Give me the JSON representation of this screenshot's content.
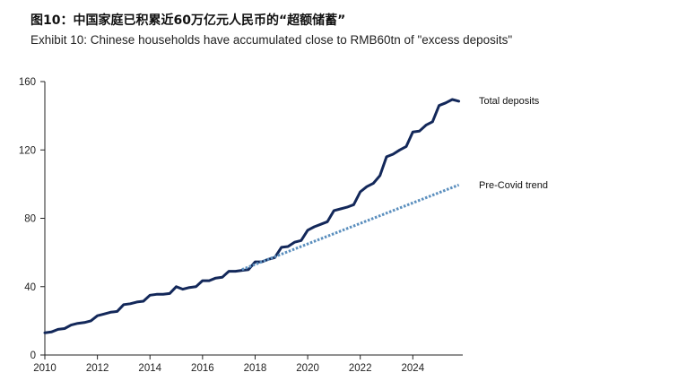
{
  "title_cn": "图10：中国家庭已积累近60万亿元人民币的“超额储蓄”",
  "title_en": "Exhibit 10:  Chinese households have accumulated close to RMB60tn of \"excess deposits\"",
  "colors": {
    "total_deposits": "#13285a",
    "pre_covid": "#5b8fbe",
    "axis": "#222222",
    "gridline": "#d9d9d9"
  },
  "chart_data": {
    "type": "line",
    "title": "Chinese households have accumulated close to RMB60tn of \"excess deposits\"",
    "xlabel": "",
    "ylabel": "",
    "xlim": [
      2010,
      2025.9
    ],
    "ylim": [
      0,
      160
    ],
    "xticks": [
      2010,
      2012,
      2014,
      2016,
      2018,
      2020,
      2022,
      2024
    ],
    "yticks": [
      0,
      40,
      80,
      120,
      160
    ],
    "grid": "horizontal",
    "series": [
      {
        "name": "Total deposits",
        "style": "solid",
        "points": [
          [
            2010.0,
            13
          ],
          [
            2010.25,
            13.5
          ],
          [
            2010.5,
            15
          ],
          [
            2010.75,
            15.5
          ],
          [
            2011.0,
            17.5
          ],
          [
            2011.25,
            18.5
          ],
          [
            2011.5,
            19
          ],
          [
            2011.75,
            20
          ],
          [
            2012.0,
            23
          ],
          [
            2012.25,
            24
          ],
          [
            2012.5,
            25
          ],
          [
            2012.75,
            25.5
          ],
          [
            2013.0,
            29.5
          ],
          [
            2013.25,
            30
          ],
          [
            2013.5,
            31
          ],
          [
            2013.75,
            31.5
          ],
          [
            2014.0,
            35
          ],
          [
            2014.25,
            35.5
          ],
          [
            2014.5,
            35.5
          ],
          [
            2014.75,
            36
          ],
          [
            2015.0,
            40
          ],
          [
            2015.25,
            38.5
          ],
          [
            2015.5,
            39.5
          ],
          [
            2015.75,
            40
          ],
          [
            2016.0,
            43.5
          ],
          [
            2016.25,
            43.5
          ],
          [
            2016.5,
            45
          ],
          [
            2016.75,
            45.5
          ],
          [
            2017.0,
            49
          ],
          [
            2017.25,
            49
          ],
          [
            2017.5,
            49.5
          ],
          [
            2017.75,
            50
          ],
          [
            2018.0,
            54.5
          ],
          [
            2018.25,
            54.5
          ],
          [
            2018.5,
            56
          ],
          [
            2018.75,
            57
          ],
          [
            2019.0,
            63
          ],
          [
            2019.25,
            63.5
          ],
          [
            2019.5,
            66
          ],
          [
            2019.75,
            67
          ],
          [
            2020.0,
            73
          ],
          [
            2020.25,
            75
          ],
          [
            2020.5,
            76.5
          ],
          [
            2020.75,
            78
          ],
          [
            2021.0,
            84.5
          ],
          [
            2021.25,
            85.5
          ],
          [
            2021.5,
            86.5
          ],
          [
            2021.75,
            88
          ],
          [
            2022.0,
            95.5
          ],
          [
            2022.25,
            98.5
          ],
          [
            2022.5,
            100.5
          ],
          [
            2022.75,
            105
          ],
          [
            2023.0,
            116
          ],
          [
            2023.25,
            117.5
          ],
          [
            2023.5,
            120
          ],
          [
            2023.75,
            122
          ],
          [
            2024.0,
            130.5
          ],
          [
            2024.25,
            131
          ],
          [
            2024.5,
            134.5
          ],
          [
            2024.75,
            136.5
          ],
          [
            2025.0,
            146
          ],
          [
            2025.25,
            147.5
          ],
          [
            2025.5,
            149.5
          ],
          [
            2025.75,
            148.5
          ]
        ]
      },
      {
        "name": "Pre-Covid trend",
        "style": "dotted",
        "points": [
          [
            2017.5,
            50
          ],
          [
            2025.75,
            99.5
          ]
        ]
      }
    ]
  }
}
